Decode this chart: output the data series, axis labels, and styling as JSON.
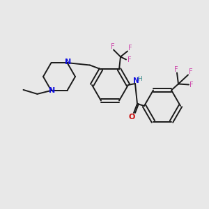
{
  "bg_color": "#e8e8e8",
  "bond_color": "#1a1a1a",
  "bond_width": 1.4,
  "n_color": "#1010dd",
  "o_color": "#cc1111",
  "f_color": "#cc44aa",
  "nh_color": "#338888",
  "figsize": [
    3.0,
    3.0
  ],
  "dpi": 100,
  "xlim": [
    0,
    300
  ],
  "ylim": [
    0,
    300
  ]
}
